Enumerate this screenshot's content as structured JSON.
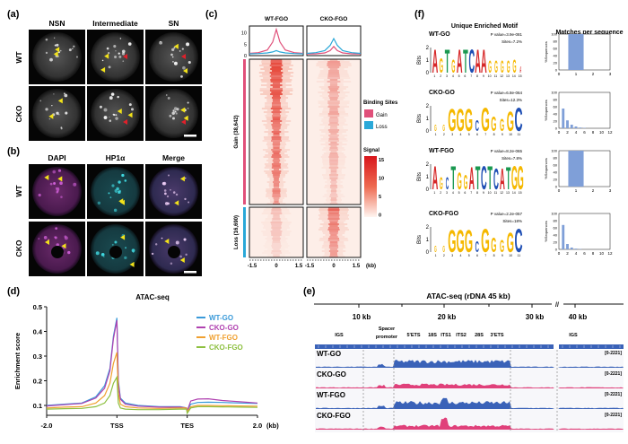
{
  "panel_a": {
    "label": "(a)",
    "columns": [
      "NSN",
      "Intermediate",
      "SN"
    ],
    "rows": [
      "WT",
      "CKO"
    ]
  },
  "panel_b": {
    "label": "(b)",
    "columns": [
      "DAPI",
      "HP1α",
      "Merge"
    ],
    "rows": [
      "WT",
      "CKO"
    ]
  },
  "panel_c": {
    "label": "(c)",
    "columns": [
      "WT-FGO",
      "CKO-FGO"
    ],
    "profile_yticks": [
      "0",
      "5",
      "10"
    ],
    "groups": [
      {
        "label": "Gain (38,642)",
        "color": "#e0507a"
      },
      {
        "label": "Loss (16,690)",
        "color": "#2aa8d8"
      }
    ],
    "xticks": [
      "-1.5",
      "0",
      "1.5"
    ],
    "xunit": "(kb)",
    "legend_title": "Binding Sites",
    "legend": [
      {
        "label": "Gain",
        "color": "#e0507a"
      },
      {
        "label": "Loss",
        "color": "#2aa8d8"
      }
    ],
    "signal_title": "Signal",
    "signal_ticks": [
      "15",
      "10",
      "5",
      "0"
    ],
    "signal_max": 15,
    "chart_data": {
      "type": "line",
      "x": [
        -1.5,
        -1,
        -0.5,
        -0.2,
        0,
        0.2,
        0.5,
        1,
        1.5
      ],
      "panels": [
        {
          "name": "WT-FGO",
          "series": [
            {
              "name": "Gain",
              "values": [
                1,
                1.3,
                2.5,
                6,
                11.5,
                6,
                2.5,
                1.3,
                1
              ]
            },
            {
              "name": "Loss",
              "values": [
                0.8,
                0.9,
                1.2,
                1.6,
                2.2,
                1.6,
                1.2,
                0.9,
                0.8
              ]
            }
          ]
        },
        {
          "name": "CKO-FGO",
          "series": [
            {
              "name": "Gain",
              "values": [
                0.7,
                0.8,
                1.2,
                2.2,
                4,
                2.2,
                1.2,
                0.8,
                0.7
              ]
            },
            {
              "name": "Loss",
              "values": [
                1,
                1.3,
                2.2,
                4.5,
                7.5,
                4.5,
                2.2,
                1.3,
                1
              ]
            }
          ]
        }
      ],
      "heatmap_peak_signal": {
        "WT-FGO": {
          "Gain": 12,
          "Loss": 3
        },
        "CKO-FGO": {
          "Gain": 5,
          "Loss": 9
        }
      }
    }
  },
  "panel_d": {
    "label": "(d)",
    "chart_data": {
      "type": "line",
      "title": "ATAC-seq",
      "ylabel": "Enrichment score",
      "xticks": [
        "-2.0",
        "TSS",
        "TES",
        "2.0"
      ],
      "xunit": "(kb)",
      "yticks": [
        "0.1",
        "0.2",
        "0.3",
        "0.4",
        "0.5"
      ],
      "ylim": [
        0.06,
        0.5
      ],
      "legend_position": "top-right",
      "segments": {
        "upstream_kb": [
          -2,
          -1.5,
          -1,
          -0.6,
          -0.35,
          -0.2,
          -0.1,
          0
        ],
        "body_percent": [
          0,
          2,
          5,
          12,
          30,
          60,
          90,
          99,
          100
        ],
        "downstream_kb": [
          0,
          0.1,
          0.3,
          0.6,
          1,
          1.5,
          2
        ]
      },
      "series": [
        {
          "name": "WT-GO",
          "color": "#3a9ad9",
          "upstream": [
            0.1,
            0.105,
            0.11,
            0.135,
            0.18,
            0.25,
            0.38,
            0.455
          ],
          "body": [
            0.455,
            0.2,
            0.13,
            0.11,
            0.1,
            0.095,
            0.095,
            0.09,
            0.08
          ],
          "downstream": [
            0.08,
            0.105,
            0.112,
            0.113,
            0.112,
            0.11,
            0.108
          ]
        },
        {
          "name": "CKO-GO",
          "color": "#b042b0",
          "upstream": [
            0.098,
            0.103,
            0.108,
            0.13,
            0.17,
            0.24,
            0.37,
            0.445
          ],
          "body": [
            0.445,
            0.19,
            0.125,
            0.105,
            0.097,
            0.093,
            0.093,
            0.09,
            0.078
          ],
          "downstream": [
            0.078,
            0.118,
            0.126,
            0.127,
            0.12,
            0.115,
            0.11
          ]
        },
        {
          "name": "WT-FGO",
          "color": "#f0a030",
          "upstream": [
            0.09,
            0.093,
            0.095,
            0.11,
            0.14,
            0.19,
            0.27,
            0.315
          ],
          "body": [
            0.315,
            0.15,
            0.105,
            0.095,
            0.09,
            0.088,
            0.09,
            0.09,
            0.075
          ],
          "downstream": [
            0.075,
            0.095,
            0.1,
            0.1,
            0.099,
            0.098,
            0.097
          ]
        },
        {
          "name": "CKO-FGO",
          "color": "#8dc040",
          "upstream": [
            0.085,
            0.087,
            0.088,
            0.095,
            0.11,
            0.14,
            0.19,
            0.215
          ],
          "body": [
            0.215,
            0.11,
            0.09,
            0.085,
            0.083,
            0.083,
            0.085,
            0.085,
            0.068
          ],
          "downstream": [
            0.068,
            0.09,
            0.095,
            0.095,
            0.094,
            0.093,
            0.092
          ]
        }
      ]
    }
  },
  "panel_e": {
    "label": "(e)",
    "title": "ATAC-seq (rDNA 45 kb)",
    "break_mark": "//",
    "scale_ticks": [
      "10 kb",
      "20 kb",
      "30 kb",
      "40 kb"
    ],
    "regions": [
      "IGS",
      "Spacer",
      "promoter",
      "5'ETS",
      "18S",
      "ITS1",
      "ITS2",
      "28S",
      "3'ETS",
      "IGS"
    ],
    "tracks": [
      {
        "name": "WT-GO",
        "range": "[0-2221]",
        "color": "#3a62b8"
      },
      {
        "name": "CKO-GO",
        "range": "[0-2221]",
        "color": "#e0407a"
      },
      {
        "name": "WT-FGO",
        "range": "[0-2221]",
        "color": "#3a62b8"
      },
      {
        "name": "CKO-FGO",
        "range": "[0-2221]",
        "color": "#e0407a"
      }
    ]
  },
  "panel_f": {
    "label": "(f)",
    "title": "Unique Enriched Motif",
    "matches_title": "Matches per sequence",
    "motif_ylabel": "Bits",
    "motif_yticks": [
      "0",
      "1",
      "2"
    ],
    "bar_ylabel": "%Sequences",
    "bar_yticks": [
      "0",
      "20",
      "40",
      "60",
      "80",
      "100"
    ],
    "letter_colors": {
      "A": "#d62728",
      "C": "#1f4fb4",
      "G": "#f5b800",
      "T": "#1a9850"
    },
    "motifs": [
      {
        "name": "WT-GO",
        "pvalue": "P value=3.9e-081",
        "sites": "Sites=7.2%",
        "letters": "AGTGATCAAGGGGGA",
        "bits": [
          1.9,
          1.2,
          1.9,
          1.1,
          1.9,
          1.9,
          1.9,
          1.9,
          1.9,
          1.0,
          1.0,
          1.0,
          1.0,
          1.1,
          0.5
        ],
        "bar_xticks": [
          "0",
          "1",
          "2",
          "3"
        ],
        "bars": [
          {
            "x": 1,
            "percent": 100
          }
        ]
      },
      {
        "name": "CKO-GO",
        "pvalue": "P value=6.8e-064",
        "sites": "Sites=12.3%",
        "letters": "GGGGGCGGGGC",
        "bits": [
          0.5,
          0.5,
          1.8,
          1.8,
          1.8,
          0.9,
          1.9,
          1.2,
          1.0,
          1.6,
          1.9
        ],
        "bar_xticks": [
          "0",
          "2",
          "4",
          "6",
          "8",
          "10",
          "12"
        ],
        "bars": [
          {
            "x": 1,
            "percent": 55
          },
          {
            "x": 2,
            "percent": 22
          },
          {
            "x": 3,
            "percent": 10
          },
          {
            "x": 4,
            "percent": 5
          },
          {
            "x": 5,
            "percent": 2
          },
          {
            "x": 6,
            "percent": 1
          }
        ]
      },
      {
        "name": "WT-FGO",
        "pvalue": "P value=8.2e-065",
        "sites": "Sites=7.8%",
        "letters": "AGCTGGATCTCATGG",
        "bits": [
          1.9,
          1.0,
          1.0,
          1.9,
          1.4,
          1.2,
          1.8,
          1.9,
          1.9,
          1.9,
          1.7,
          1.7,
          1.8,
          1.9,
          1.9
        ],
        "bar_xticks": [
          "0",
          "1",
          "2",
          "3"
        ],
        "bars": [
          {
            "x": 1,
            "percent": 100
          }
        ]
      },
      {
        "name": "CKO-FGO",
        "pvalue": "P value=2.2e-057",
        "sites": "Sites=18%",
        "letters": "GGGGGCGGGGC",
        "bits": [
          0.5,
          0.5,
          1.8,
          1.8,
          1.8,
          0.9,
          1.9,
          1.2,
          1.0,
          1.6,
          1.9
        ],
        "bar_xticks": [
          "0",
          "2",
          "4",
          "6",
          "8",
          "10",
          "12"
        ],
        "bars": [
          {
            "x": 1,
            "percent": 68
          },
          {
            "x": 2,
            "percent": 15
          },
          {
            "x": 3,
            "percent": 5
          },
          {
            "x": 4,
            "percent": 2
          },
          {
            "x": 5,
            "percent": 1
          }
        ]
      }
    ]
  }
}
